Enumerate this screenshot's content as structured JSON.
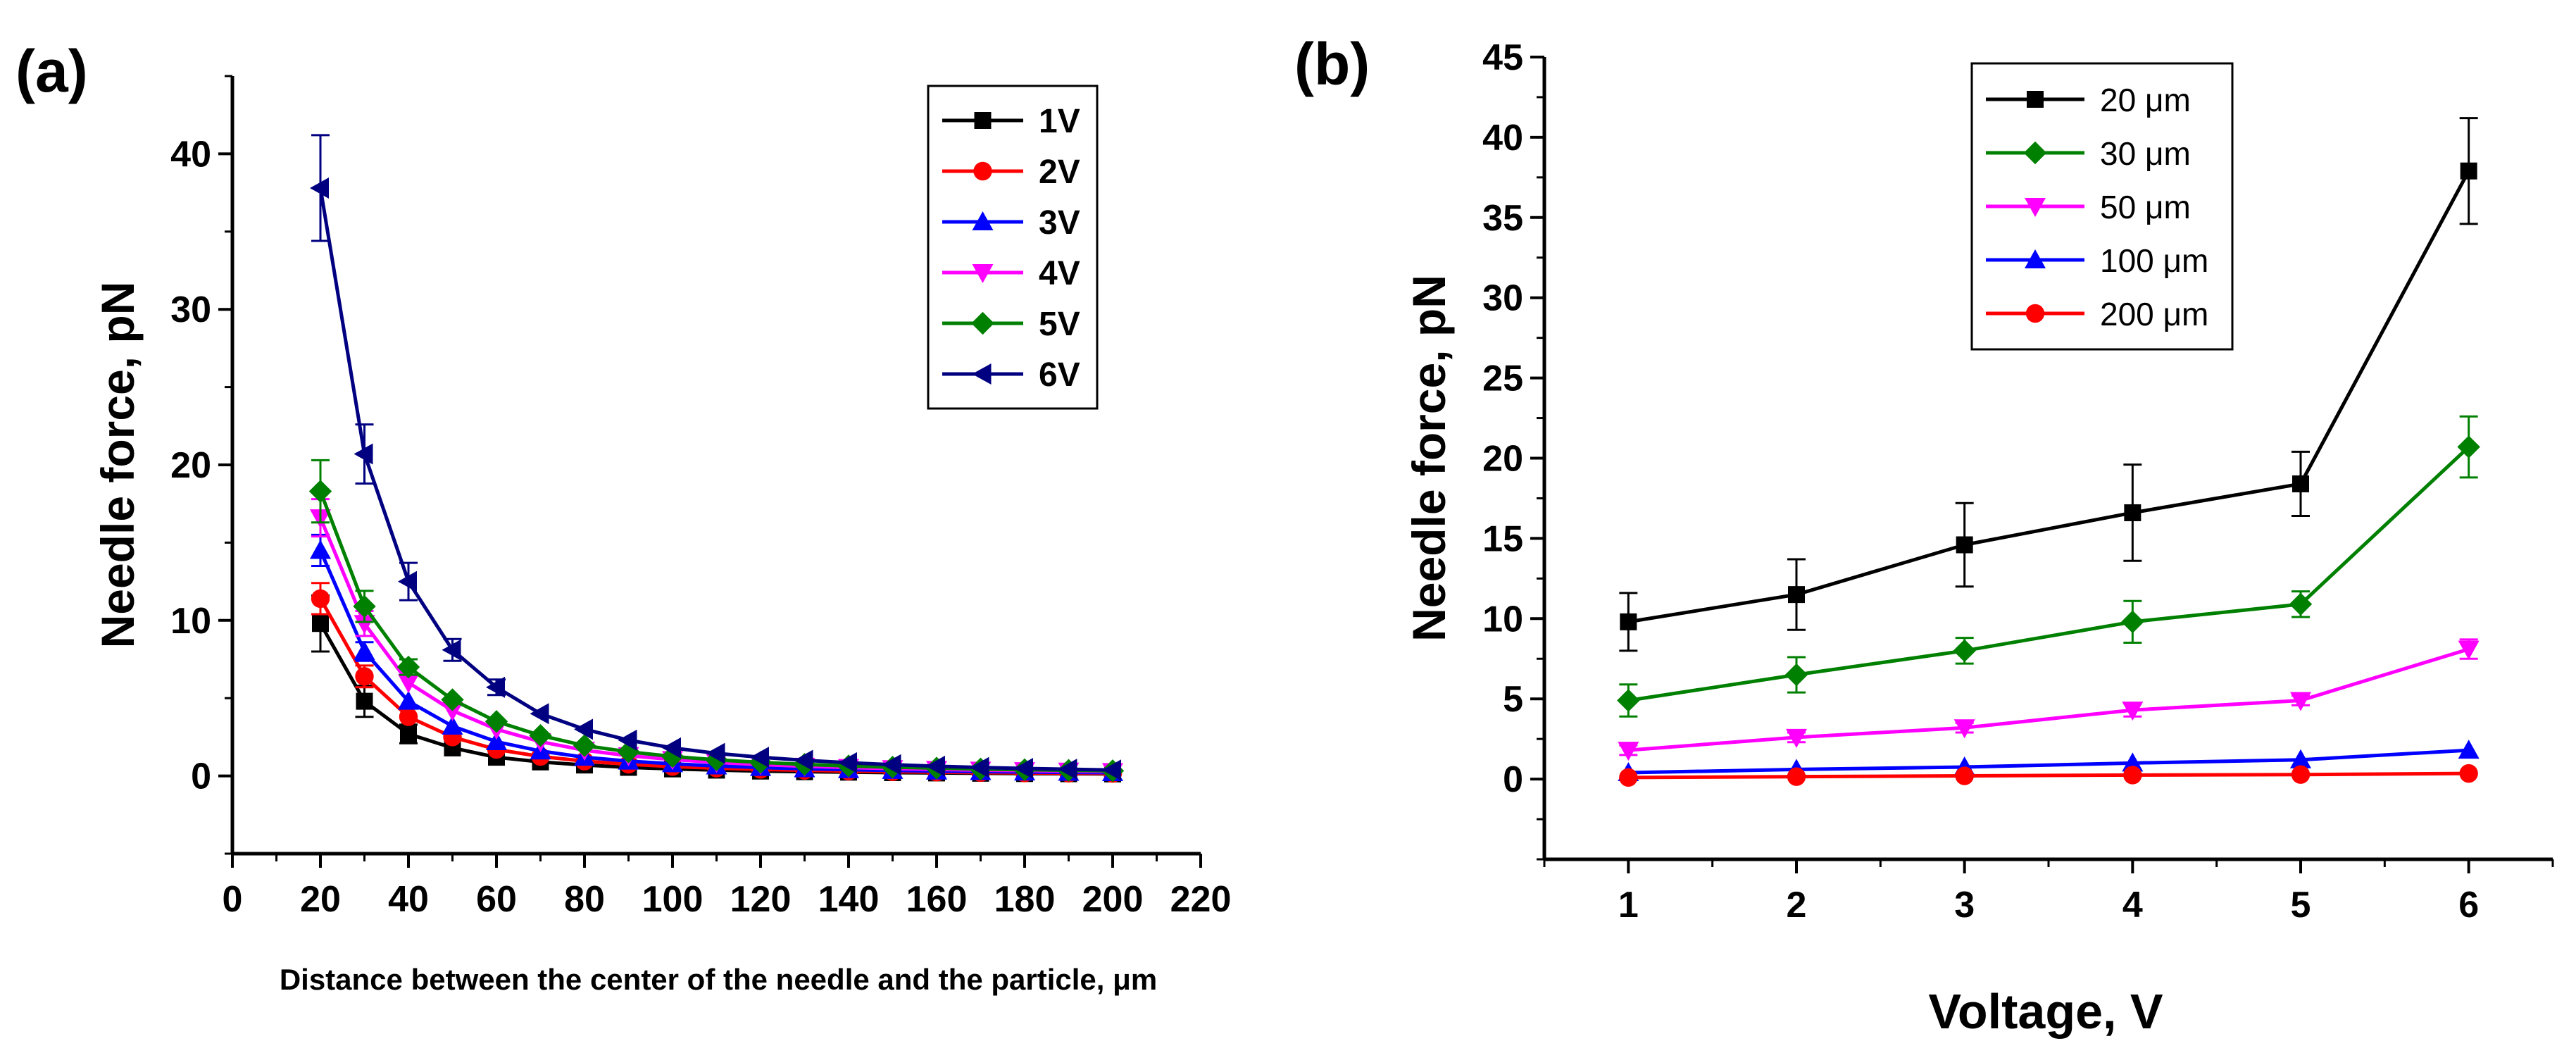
{
  "chart_data": [
    {
      "panel_label": "(a)",
      "type": "line",
      "xlabel": "Distance between the center of the needle and the particle, μm",
      "ylabel": "Needle force, pN",
      "xlim": [
        0,
        220
      ],
      "ylim": [
        -5,
        45
      ],
      "xticks": [
        0,
        20,
        40,
        60,
        80,
        100,
        120,
        140,
        160,
        180,
        200,
        220
      ],
      "yticks": [
        0,
        10,
        20,
        30,
        40
      ],
      "legend_position": "top-right",
      "grid": false,
      "x": [
        20,
        30,
        40,
        50,
        60,
        70,
        80,
        90,
        100,
        110,
        120,
        130,
        140,
        150,
        160,
        170,
        180,
        190,
        200
      ],
      "series": [
        {
          "name": "1V",
          "color": "#000000",
          "marker": "square",
          "values": [
            9.8,
            4.8,
            2.7,
            1.8,
            1.2,
            0.9,
            0.7,
            0.55,
            0.45,
            0.37,
            0.31,
            0.27,
            0.24,
            0.21,
            0.19,
            0.17,
            0.15,
            0.14,
            0.13
          ],
          "errors": [
            1.8,
            1.0,
            0.6
          ]
        },
        {
          "name": "2V",
          "color": "#ff0000",
          "marker": "circle",
          "values": [
            11.4,
            6.4,
            3.8,
            2.5,
            1.7,
            1.25,
            0.95,
            0.75,
            0.6,
            0.5,
            0.42,
            0.36,
            0.31,
            0.27,
            0.24,
            0.21,
            0.19,
            0.17,
            0.16
          ],
          "errors": [
            1.0,
            0.7
          ]
        },
        {
          "name": "3V",
          "color": "#0000ff",
          "marker": "triangle-up",
          "values": [
            14.5,
            8.0,
            4.8,
            3.2,
            2.2,
            1.6,
            1.2,
            0.95,
            0.78,
            0.64,
            0.54,
            0.46,
            0.4,
            0.35,
            0.31,
            0.28,
            0.25,
            0.23,
            0.21
          ],
          "errors": [
            1.0,
            0.6
          ]
        },
        {
          "name": "4V",
          "color": "#ff00ff",
          "marker": "triangle-down",
          "values": [
            16.6,
            9.8,
            6.0,
            4.2,
            3.0,
            2.2,
            1.65,
            1.3,
            1.05,
            0.87,
            0.73,
            0.62,
            0.54,
            0.47,
            0.42,
            0.37,
            0.34,
            0.31,
            0.28
          ],
          "errors": [
            1.2,
            0.8
          ]
        },
        {
          "name": "5V",
          "color": "#008000",
          "marker": "diamond",
          "values": [
            18.3,
            10.9,
            7.0,
            4.9,
            3.5,
            2.6,
            1.95,
            1.55,
            1.25,
            1.03,
            0.87,
            0.74,
            0.64,
            0.56,
            0.5,
            0.44,
            0.4,
            0.36,
            0.33
          ],
          "errors": [
            2.0,
            1.0,
            0.5
          ]
        },
        {
          "name": "6V",
          "color": "#000080",
          "marker": "triangle-left",
          "values": [
            37.8,
            20.7,
            12.5,
            8.1,
            5.7,
            4.0,
            3.0,
            2.3,
            1.8,
            1.45,
            1.2,
            1.0,
            0.85,
            0.72,
            0.62,
            0.54,
            0.48,
            0.43,
            0.38
          ],
          "errors": [
            3.4,
            1.9,
            1.2,
            0.7,
            0.5
          ]
        }
      ]
    },
    {
      "panel_label": "(b)",
      "type": "line",
      "xlabel": "Voltage, V",
      "ylabel": "Needle force, pN",
      "xlim": [
        0.5,
        6.5
      ],
      "ylim": [
        -5,
        45
      ],
      "xticks": [
        1,
        2,
        3,
        4,
        5,
        6
      ],
      "yticks": [
        0,
        5,
        10,
        15,
        20,
        25,
        30,
        35,
        40,
        45
      ],
      "legend_position": "top-left",
      "grid": false,
      "x": [
        1,
        2,
        3,
        4,
        5,
        6
      ],
      "series": [
        {
          "name": "20 μm",
          "color": "#000000",
          "marker": "square",
          "values": [
            9.8,
            11.5,
            14.6,
            16.6,
            18.4,
            37.9
          ],
          "errors": [
            1.8,
            2.2,
            2.6,
            3.0,
            2.0,
            3.3
          ]
        },
        {
          "name": "30 μm",
          "color": "#008000",
          "marker": "diamond",
          "values": [
            4.9,
            6.5,
            8.0,
            9.8,
            10.9,
            20.7
          ],
          "errors": [
            1.0,
            1.1,
            0.8,
            1.3,
            0.8,
            1.9
          ]
        },
        {
          "name": "50 μm",
          "color": "#ff00ff",
          "marker": "triangle-down",
          "values": [
            1.8,
            2.6,
            3.2,
            4.3,
            4.9,
            8.1
          ],
          "errors": [
            0.3,
            0.3,
            0.3,
            0.4,
            0.3,
            0.6
          ]
        },
        {
          "name": "100 μm",
          "color": "#0000ff",
          "marker": "triangle-up",
          "values": [
            0.4,
            0.6,
            0.75,
            1.0,
            1.2,
            1.8
          ],
          "errors": []
        },
        {
          "name": "200 μm",
          "color": "#ff0000",
          "marker": "circle",
          "values": [
            0.1,
            0.15,
            0.2,
            0.25,
            0.28,
            0.35
          ],
          "errors": []
        }
      ]
    }
  ]
}
